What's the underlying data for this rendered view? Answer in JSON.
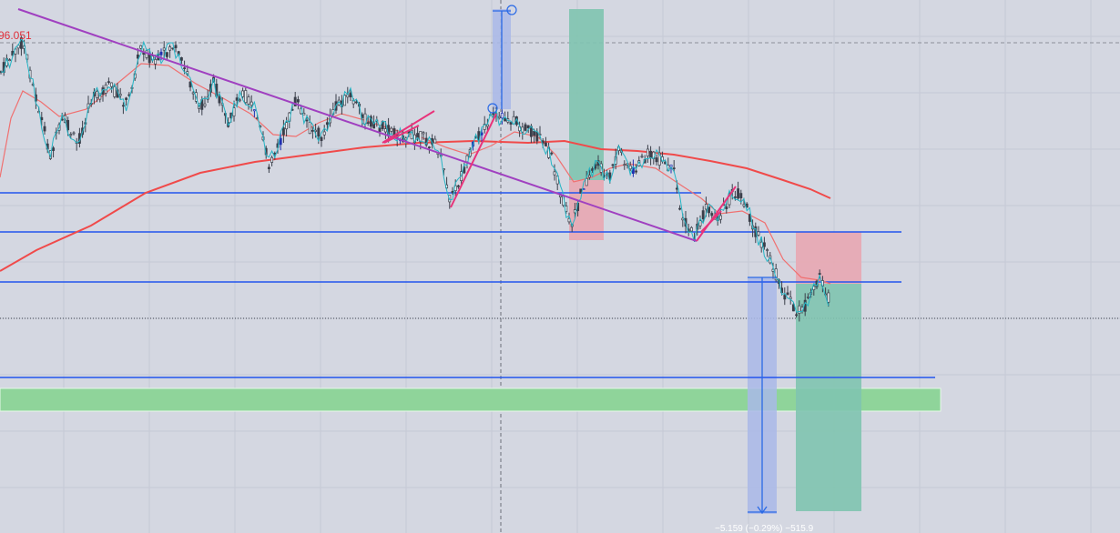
{
  "chart_data": {
    "type": "candlestick",
    "title": "",
    "xlabel": "",
    "ylabel": "",
    "grid": true,
    "price_label": "96.051",
    "measure_label": "−5.159 (−0.29%) −515.9",
    "colors": {
      "background": "#d4d7e1",
      "grid": "#c5c9d5",
      "candle": "#3a3f4a",
      "candle_highlight": "#1f2fb0",
      "zigzag": "#25b5c5",
      "ma_slow": "#f04a4a",
      "ma_fast": "#f07070",
      "trendline": "#a040c0",
      "pattern": "#e8337a",
      "horizontal_level": "#2255ee",
      "target_zone": "#8fd49a",
      "long_profit": "#7fc4b0",
      "long_stop": "#e8a7b3",
      "measure": "#a9b8e8",
      "measure_line": "#2a6ae6",
      "price_label": "#e0303a"
    },
    "series": [
      {
        "name": "",
        "kind": "zigzag"
      },
      {
        "name": "",
        "kind": "moving-average-slow"
      },
      {
        "name": "",
        "kind": "moving-average-fast"
      }
    ],
    "drawings": [
      "descending trendline",
      "horizontal level 1",
      "horizontal level 2",
      "horizontal level 3",
      "horizontal level 4",
      "target zone",
      "long position 1",
      "long position 2",
      "measure tool 1",
      "measure tool 2",
      "pattern lines"
    ]
  }
}
